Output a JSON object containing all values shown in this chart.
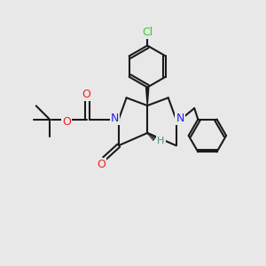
{
  "background_color": "#e8e8e8",
  "bond_color": "#1a1a1a",
  "N_color": "#2020ee",
  "O_color": "#ee2020",
  "Cl_color": "#33cc33",
  "H_color": "#5a8a7a",
  "font_size": 9,
  "figsize": [
    3.0,
    3.0
  ],
  "dpi": 100,
  "xlim": [
    0,
    10
  ],
  "ylim": [
    0,
    10
  ]
}
